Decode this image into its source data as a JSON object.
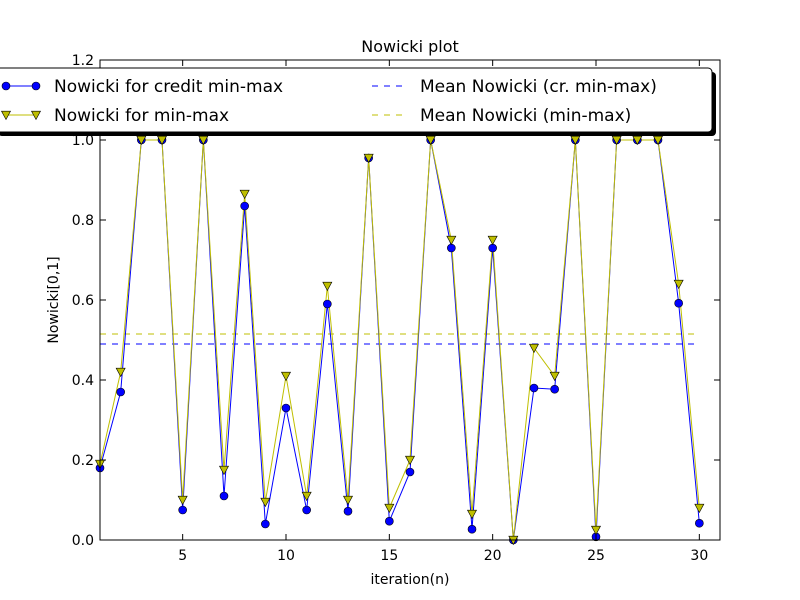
{
  "chart_data": {
    "type": "line",
    "title": "Nowicki plot",
    "xlabel": "iteration(n)",
    "ylabel": "Nowicki[0,1]",
    "xlim": [
      1,
      31
    ],
    "ylim": [
      0,
      1.2
    ],
    "x_ticks": [
      5,
      10,
      15,
      20,
      25,
      30
    ],
    "y_ticks": [
      0.0,
      0.2,
      0.4,
      0.6,
      0.8,
      1.0,
      1.2
    ],
    "x_tick_labels": [
      "5",
      "10",
      "15",
      "20",
      "25",
      "30"
    ],
    "y_tick_labels": [
      "0.0",
      "0.2",
      "0.4",
      "0.6",
      "0.8",
      "1.0",
      "1.2"
    ],
    "grid": false,
    "legend_position": "top",
    "x": [
      1,
      2,
      3,
      4,
      5,
      6,
      7,
      8,
      9,
      10,
      11,
      12,
      13,
      14,
      15,
      16,
      17,
      18,
      19,
      20,
      21,
      22,
      23,
      24,
      25,
      26,
      27,
      28,
      29,
      30
    ],
    "series": [
      {
        "name": "Nowicki for credit min-max",
        "color": "#0000ff",
        "marker": "circle",
        "values": [
          0.18,
          0.37,
          1.0,
          1.0,
          0.075,
          1.0,
          0.11,
          0.835,
          0.04,
          0.33,
          0.075,
          0.59,
          0.072,
          0.955,
          0.047,
          0.17,
          1.0,
          0.73,
          0.027,
          0.73,
          0.0,
          0.38,
          0.377,
          1.0,
          0.008,
          1.0,
          1.0,
          1.0,
          0.592,
          0.042
        ]
      },
      {
        "name": "Nowicki for min-max",
        "color": "#bfbf00",
        "marker": "triangle-down",
        "values": [
          0.19,
          0.42,
          1.0,
          1.0,
          0.1,
          1.0,
          0.175,
          0.865,
          0.095,
          0.41,
          0.11,
          0.635,
          0.1,
          0.955,
          0.08,
          0.2,
          1.0,
          0.75,
          0.065,
          0.75,
          0.0,
          0.48,
          0.41,
          1.0,
          0.025,
          1.0,
          1.0,
          1.0,
          0.64,
          0.08
        ]
      }
    ],
    "mean_lines": [
      {
        "name": "Mean Nowicki (cr. min-max)",
        "color": "#0000ff",
        "value": 0.49
      },
      {
        "name": "Mean Nowicki (min-max)",
        "color": "#bfbf00",
        "value": 0.515
      }
    ]
  }
}
